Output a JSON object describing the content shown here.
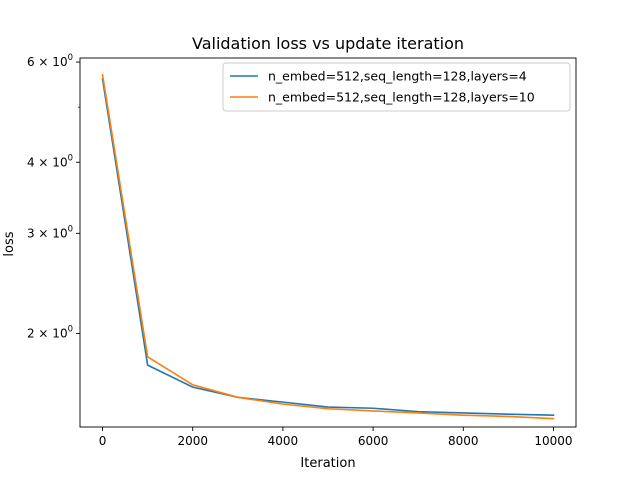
{
  "chart_data": {
    "type": "line",
    "title": "Validation loss vs update iteration",
    "xlabel": "Iteration",
    "ylabel": "loss",
    "yscale": "log",
    "xlim": [
      -500,
      10500
    ],
    "ylim": [
      1.37,
      6.1
    ],
    "xticks": [
      0,
      2000,
      4000,
      6000,
      8000,
      10000
    ],
    "xtick_labels": [
      "0",
      "2000",
      "4000",
      "6000",
      "8000",
      "10000"
    ],
    "yticks": [
      2,
      3,
      4,
      6
    ],
    "ytick_labels": [
      {
        "base": "2",
        "sep": "×",
        "exp_base": "10",
        "exp": "0"
      },
      {
        "base": "3",
        "sep": "×",
        "exp_base": "10",
        "exp": "0"
      },
      {
        "base": "4",
        "sep": "×",
        "exp_base": "10",
        "exp": "0"
      },
      {
        "base": "6",
        "sep": "×",
        "exp_base": "10",
        "exp": "0"
      }
    ],
    "minor_yticks": [
      5
    ],
    "legend_position": "upper right",
    "x": [
      0,
      1000,
      2000,
      3000,
      4000,
      5000,
      6000,
      7000,
      8000,
      9000,
      10000
    ],
    "series": [
      {
        "name": "n_embed=512,seq_length=128,layers=4",
        "color": "#1f77b4",
        "values": [
          5.6,
          1.76,
          1.61,
          1.545,
          1.515,
          1.485,
          1.478,
          1.458,
          1.45,
          1.443,
          1.437
        ]
      },
      {
        "name": "n_embed=512,seq_length=128,layers=10",
        "color": "#ff7f0e",
        "values": [
          5.7,
          1.82,
          1.625,
          1.545,
          1.503,
          1.475,
          1.462,
          1.45,
          1.437,
          1.43,
          1.417
        ]
      }
    ]
  }
}
